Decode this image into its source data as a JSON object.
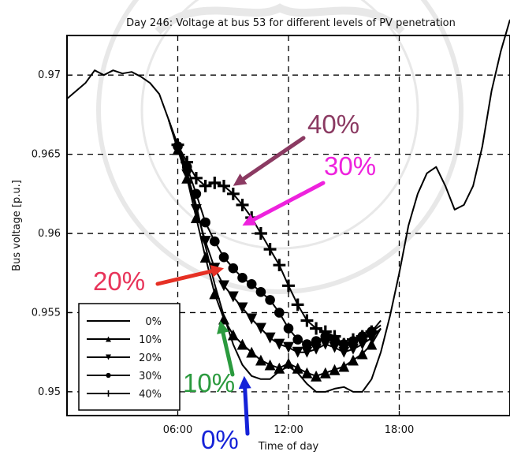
{
  "chart_data": {
    "type": "line",
    "title": "Day 246: Voltage at bus 53 for different levels of PV penetration",
    "xlabel": "Time of day",
    "ylabel": "Bus voltage [p.u.]",
    "xlim": [
      0,
      24
    ],
    "ylim": [
      0.9485,
      0.9725
    ],
    "x_ticks": [
      6,
      12,
      18
    ],
    "x_tick_labels": [
      "06:00",
      "12:00",
      "18:00"
    ],
    "y_ticks": [
      0.95,
      0.955,
      0.96,
      0.965,
      0.97
    ],
    "y_tick_labels": [
      "0.95",
      "0.955",
      "0.96",
      "0.965",
      "0.97"
    ],
    "grid": true,
    "legend_position": "bottom-left",
    "series": [
      {
        "name": "0%",
        "x": [
          0,
          1,
          1.5,
          2,
          2.5,
          3,
          3.5,
          4,
          4.5,
          5,
          5.5,
          6,
          6.5,
          7,
          7.5,
          8,
          8.5,
          9,
          9.5,
          10,
          10.5,
          11,
          11.5,
          12,
          12.5,
          13,
          13.5,
          14,
          14.5,
          15,
          15.5,
          16,
          16.5,
          17,
          17.5,
          18,
          18.5,
          19,
          19.5,
          20,
          20.5,
          21,
          21.5,
          22,
          22.5,
          23,
          23.5,
          24
        ],
        "y": [
          0.9685,
          0.9695,
          0.9703,
          0.97,
          0.9703,
          0.9701,
          0.9702,
          0.9699,
          0.9695,
          0.9688,
          0.9672,
          0.9655,
          0.9638,
          0.9618,
          0.9592,
          0.9568,
          0.9548,
          0.953,
          0.9517,
          0.951,
          0.9508,
          0.9508,
          0.9513,
          0.9516,
          0.9512,
          0.9505,
          0.95,
          0.95,
          0.9502,
          0.9503,
          0.95,
          0.95,
          0.9508,
          0.9525,
          0.9548,
          0.9575,
          0.9605,
          0.9625,
          0.9638,
          0.9642,
          0.963,
          0.9615,
          0.9618,
          0.963,
          0.9655,
          0.969,
          0.9715,
          0.9735
        ]
      },
      {
        "name": "10%",
        "x": [
          5.5,
          6,
          6.5,
          7,
          7.5,
          8,
          8.5,
          9,
          9.5,
          10,
          10.5,
          11,
          11.5,
          12,
          12.5,
          13,
          13.5,
          14,
          14.5,
          15,
          15.5,
          16,
          16.5,
          17
        ],
        "y": [
          0.9672,
          0.9653,
          0.9635,
          0.961,
          0.9585,
          0.9562,
          0.9546,
          0.9536,
          0.953,
          0.9525,
          0.952,
          0.9517,
          0.9515,
          0.9518,
          0.9515,
          0.9512,
          0.951,
          0.9512,
          0.9514,
          0.9516,
          0.952,
          0.9524,
          0.953,
          0.954
        ]
      },
      {
        "name": "20%",
        "x": [
          5.5,
          6,
          6.5,
          7,
          7.5,
          8,
          8.5,
          9,
          9.5,
          10,
          10.5,
          11,
          11.5,
          12,
          12.5,
          13,
          13.5,
          14,
          14.5,
          15,
          15.5,
          16,
          16.5,
          17
        ],
        "y": [
          0.9672,
          0.9653,
          0.9637,
          0.9615,
          0.9595,
          0.9578,
          0.9567,
          0.956,
          0.9553,
          0.9546,
          0.954,
          0.9534,
          0.953,
          0.9528,
          0.9525,
          0.9525,
          0.9527,
          0.953,
          0.9528,
          0.9525,
          0.9527,
          0.953,
          0.9534,
          0.954
        ]
      },
      {
        "name": "30%",
        "x": [
          5.5,
          6,
          6.5,
          7,
          7.5,
          8,
          8.5,
          9,
          9.5,
          10,
          10.5,
          11,
          11.5,
          12,
          12.5,
          13,
          13.5,
          14,
          14.5,
          15,
          15.5,
          16,
          16.5,
          17
        ],
        "y": [
          0.9672,
          0.9655,
          0.9642,
          0.9625,
          0.9607,
          0.9595,
          0.9585,
          0.9578,
          0.9572,
          0.9568,
          0.9563,
          0.9558,
          0.955,
          0.954,
          0.9533,
          0.953,
          0.9532,
          0.9535,
          0.9533,
          0.953,
          0.9532,
          0.9535,
          0.9538,
          0.9542
        ]
      },
      {
        "name": "40%",
        "x": [
          5.5,
          6,
          6.5,
          7,
          7.5,
          8,
          8.5,
          9,
          9.5,
          10,
          10.5,
          11,
          11.5,
          12,
          12.5,
          13,
          13.5,
          14,
          14.5,
          15,
          15.5,
          16,
          16.5,
          17
        ],
        "y": [
          0.9672,
          0.9656,
          0.9645,
          0.9635,
          0.963,
          0.9632,
          0.963,
          0.9625,
          0.9618,
          0.961,
          0.96,
          0.959,
          0.958,
          0.9567,
          0.9555,
          0.9545,
          0.954,
          0.9538,
          0.9535,
          0.953,
          0.9533,
          0.9535,
          0.9538,
          0.9545
        ]
      }
    ],
    "annotations": [
      {
        "text": "40%",
        "color": "#8b3a62",
        "points_to": [
          9,
          0.963
        ]
      },
      {
        "text": "30%",
        "color": "#ee22dd",
        "points_to": [
          9.5,
          0.9605
        ]
      },
      {
        "text": "20%",
        "color": "#e8345a",
        "arrow_color": "#e63024",
        "points_to": [
          8.5,
          0.9578
        ]
      },
      {
        "text": "10%",
        "color": "#2b9a3e",
        "points_to": [
          8.3,
          0.9545
        ]
      },
      {
        "text": "0%",
        "color": "#1522d8",
        "points_to": [
          9.6,
          0.951
        ]
      }
    ]
  }
}
